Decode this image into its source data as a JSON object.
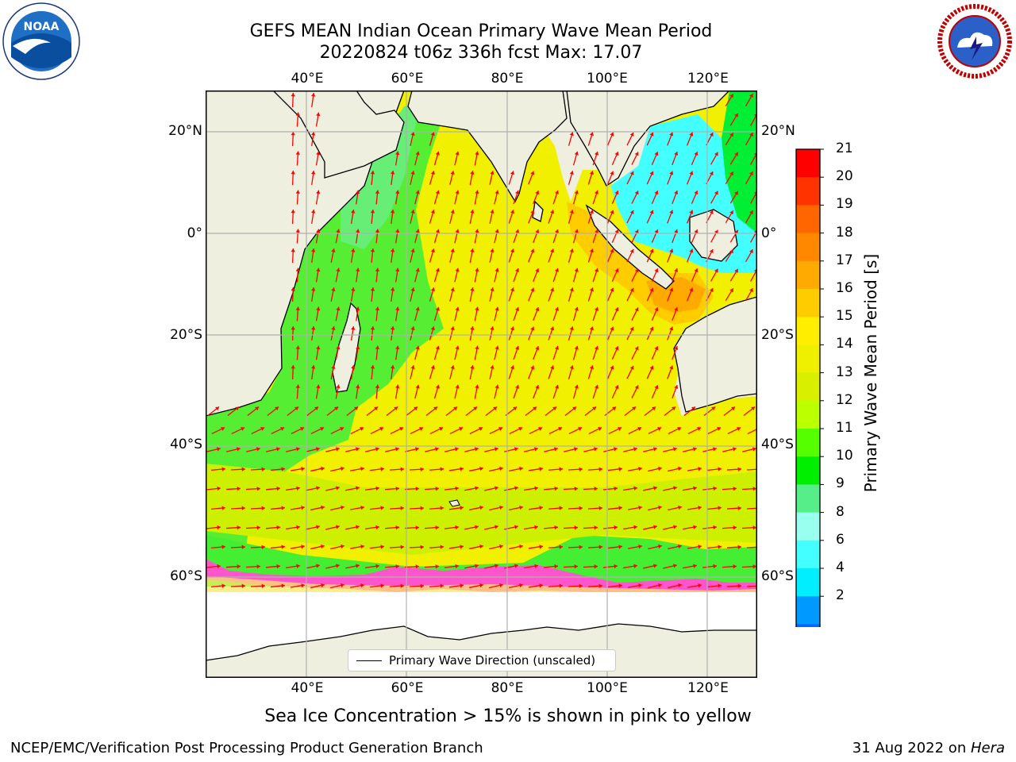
{
  "title_line1": "GEFS MEAN Indian Ocean Primary Wave Mean Period",
  "title_line2": "20220824 t06z 336h fcst   Max: 17.07",
  "lon_labels": [
    "40°E",
    "60°E",
    "80°E",
    "100°E",
    "120°E"
  ],
  "lat_labels": [
    "20°N",
    "0°",
    "20°S",
    "40°S",
    "60°S"
  ],
  "legend_label": "Primary Wave Direction (unscaled)",
  "colorbar": {
    "title": "Primary Wave Mean Period [s]",
    "ticks": [
      "21",
      "20",
      "19",
      "18",
      "17",
      "16",
      "15",
      "14",
      "13",
      "12",
      "11",
      "10",
      "9",
      "8",
      "6",
      "4",
      "2"
    ],
    "colors": [
      "#ff0000",
      "#ff3300",
      "#ff6600",
      "#ff8800",
      "#ffaa00",
      "#ffcc00",
      "#ffee00",
      "#eef000",
      "#d8f000",
      "#bbff00",
      "#55ff00",
      "#00ee00",
      "#55ee88",
      "#99ffee",
      "#44ffff",
      "#00eeff",
      "#0099ff",
      "#0066ff"
    ]
  },
  "caption": "Sea Ice Concentration > 15% is shown in pink to yellow",
  "footer_left": "NCEP/EMC/Verification Post Processing Product Generation Branch",
  "footer_right_date": "31 Aug 2022 on ",
  "footer_right_host": "Hera",
  "logos": {
    "left_icon": "noaa-logo",
    "left_text": "NOAA",
    "right_icon": "nws-logo",
    "right_text": "NATIONAL WEATHER SERVICE"
  },
  "colors": {
    "land": "#efefdf",
    "ocean_main": "#f0f000",
    "arrow": "#ff0000"
  }
}
